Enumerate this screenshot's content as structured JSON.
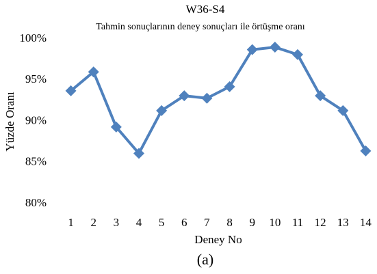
{
  "chart_data": {
    "type": "line",
    "title": "W36-S4",
    "subtitle": "Tahmin sonuçlarının deney sonuçları ile örtüşme oranı",
    "xlabel": "Deney No",
    "ylabel": "Yüzde Oranı",
    "caption": "(a)",
    "categories": [
      "1",
      "2",
      "3",
      "4",
      "5",
      "6",
      "7",
      "8",
      "9",
      "10",
      "11",
      "12",
      "13",
      "14"
    ],
    "series": [
      {
        "name": "W36-S4",
        "color": "#4f81bd",
        "values": [
          93.7,
          96.0,
          89.3,
          86.1,
          91.3,
          93.1,
          92.8,
          94.2,
          98.7,
          99.0,
          98.1,
          93.1,
          91.3,
          86.4
        ]
      }
    ],
    "ylim": [
      80,
      100
    ],
    "yticks": [
      {
        "value": 80,
        "label": "80%"
      },
      {
        "value": 85,
        "label": "85%"
      },
      {
        "value": 90,
        "label": "90%"
      },
      {
        "value": 95,
        "label": "95%"
      },
      {
        "value": 100,
        "label": "100%"
      }
    ],
    "grid": false,
    "legend": false
  }
}
